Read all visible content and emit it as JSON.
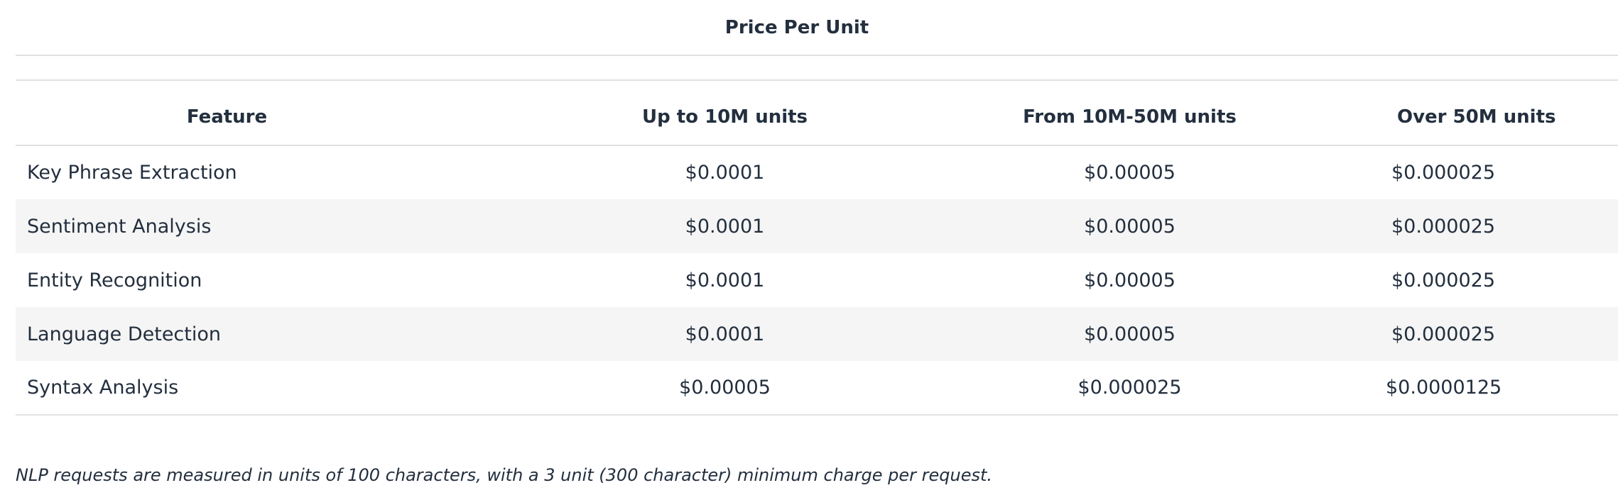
{
  "table": {
    "caption": "Price Per Unit",
    "headers": [
      "Feature",
      "Up to 10M units",
      "From 10M-50M units",
      "Over 50M units"
    ],
    "rows": [
      [
        "Key Phrase Extraction",
        "$0.0001",
        "$0.00005",
        "$0.000025"
      ],
      [
        "Sentiment Analysis",
        "$0.0001",
        "$0.00005",
        "$0.000025"
      ],
      [
        "Entity Recognition",
        "$0.0001",
        "$0.00005",
        "$0.000025"
      ],
      [
        "Language Detection",
        "$0.0001",
        "$0.00005",
        "$0.000025"
      ],
      [
        "Syntax Analysis",
        "$0.00005",
        "$0.000025",
        "$0.0000125"
      ]
    ],
    "stripe_color": "#f5f5f5",
    "border_color": "#e1e1e1",
    "text_color": "#232f3e"
  },
  "footnote": "NLP requests are measured in units of 100 characters, with a 3 unit (300 character) minimum charge per request."
}
